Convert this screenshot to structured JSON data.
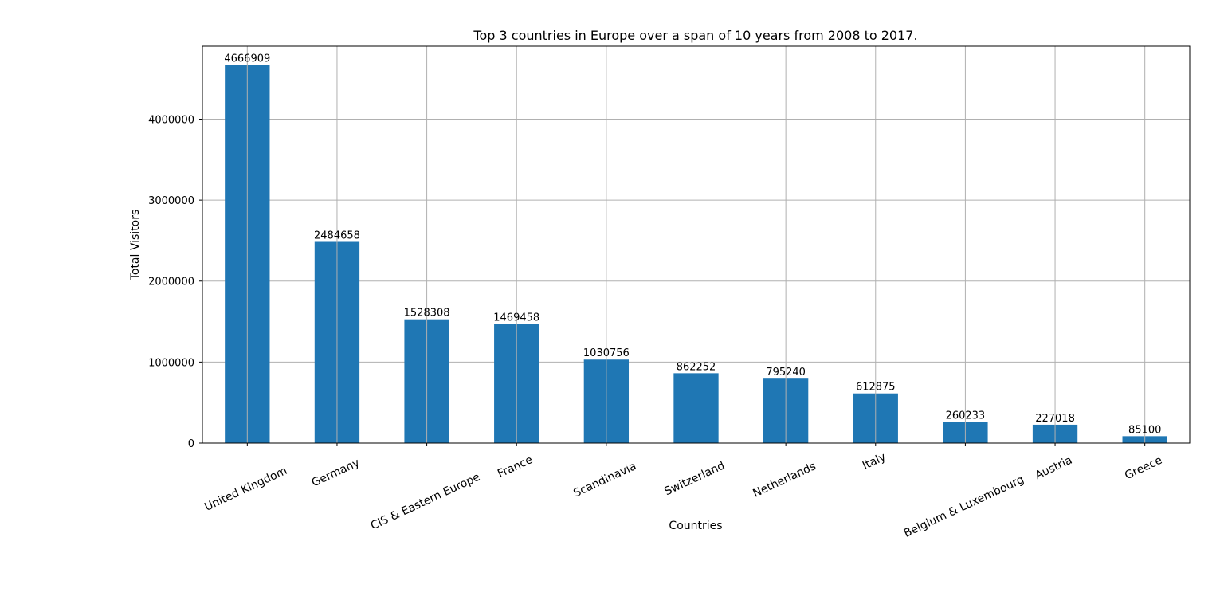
{
  "chart_data": {
    "type": "bar",
    "title": "Top 3 countries in Europe over a span of 10 years from 2008 to 2017.",
    "xlabel": "Countries",
    "ylabel": "Total Visitors",
    "categories": [
      "United Kingdom",
      "Germany",
      "CIS & Eastern Europe",
      "France",
      "Scandinavia",
      "Switzerland",
      "Netherlands",
      "Italy",
      "Belgium & Luxembourg",
      "Austria",
      "Greece"
    ],
    "values": [
      4666909,
      2484658,
      1528308,
      1469458,
      1030756,
      862252,
      795240,
      612875,
      260233,
      227018,
      85100
    ],
    "data_labels": [
      "4666909",
      "2484658",
      "1528308",
      "1469458",
      "1030756",
      "862252",
      "795240",
      "612875",
      "260233",
      "227018",
      "85100"
    ],
    "ylim": [
      0,
      4900345
    ],
    "yticks": [
      0,
      1000000,
      2000000,
      3000000,
      4000000
    ],
    "ytick_labels": [
      "0",
      "1000000",
      "2000000",
      "3000000",
      "4000000"
    ],
    "bar_color": "#1f77b4",
    "grid": true,
    "grid_color": "#b0b0b0",
    "xtick_rotation_deg": 25
  }
}
